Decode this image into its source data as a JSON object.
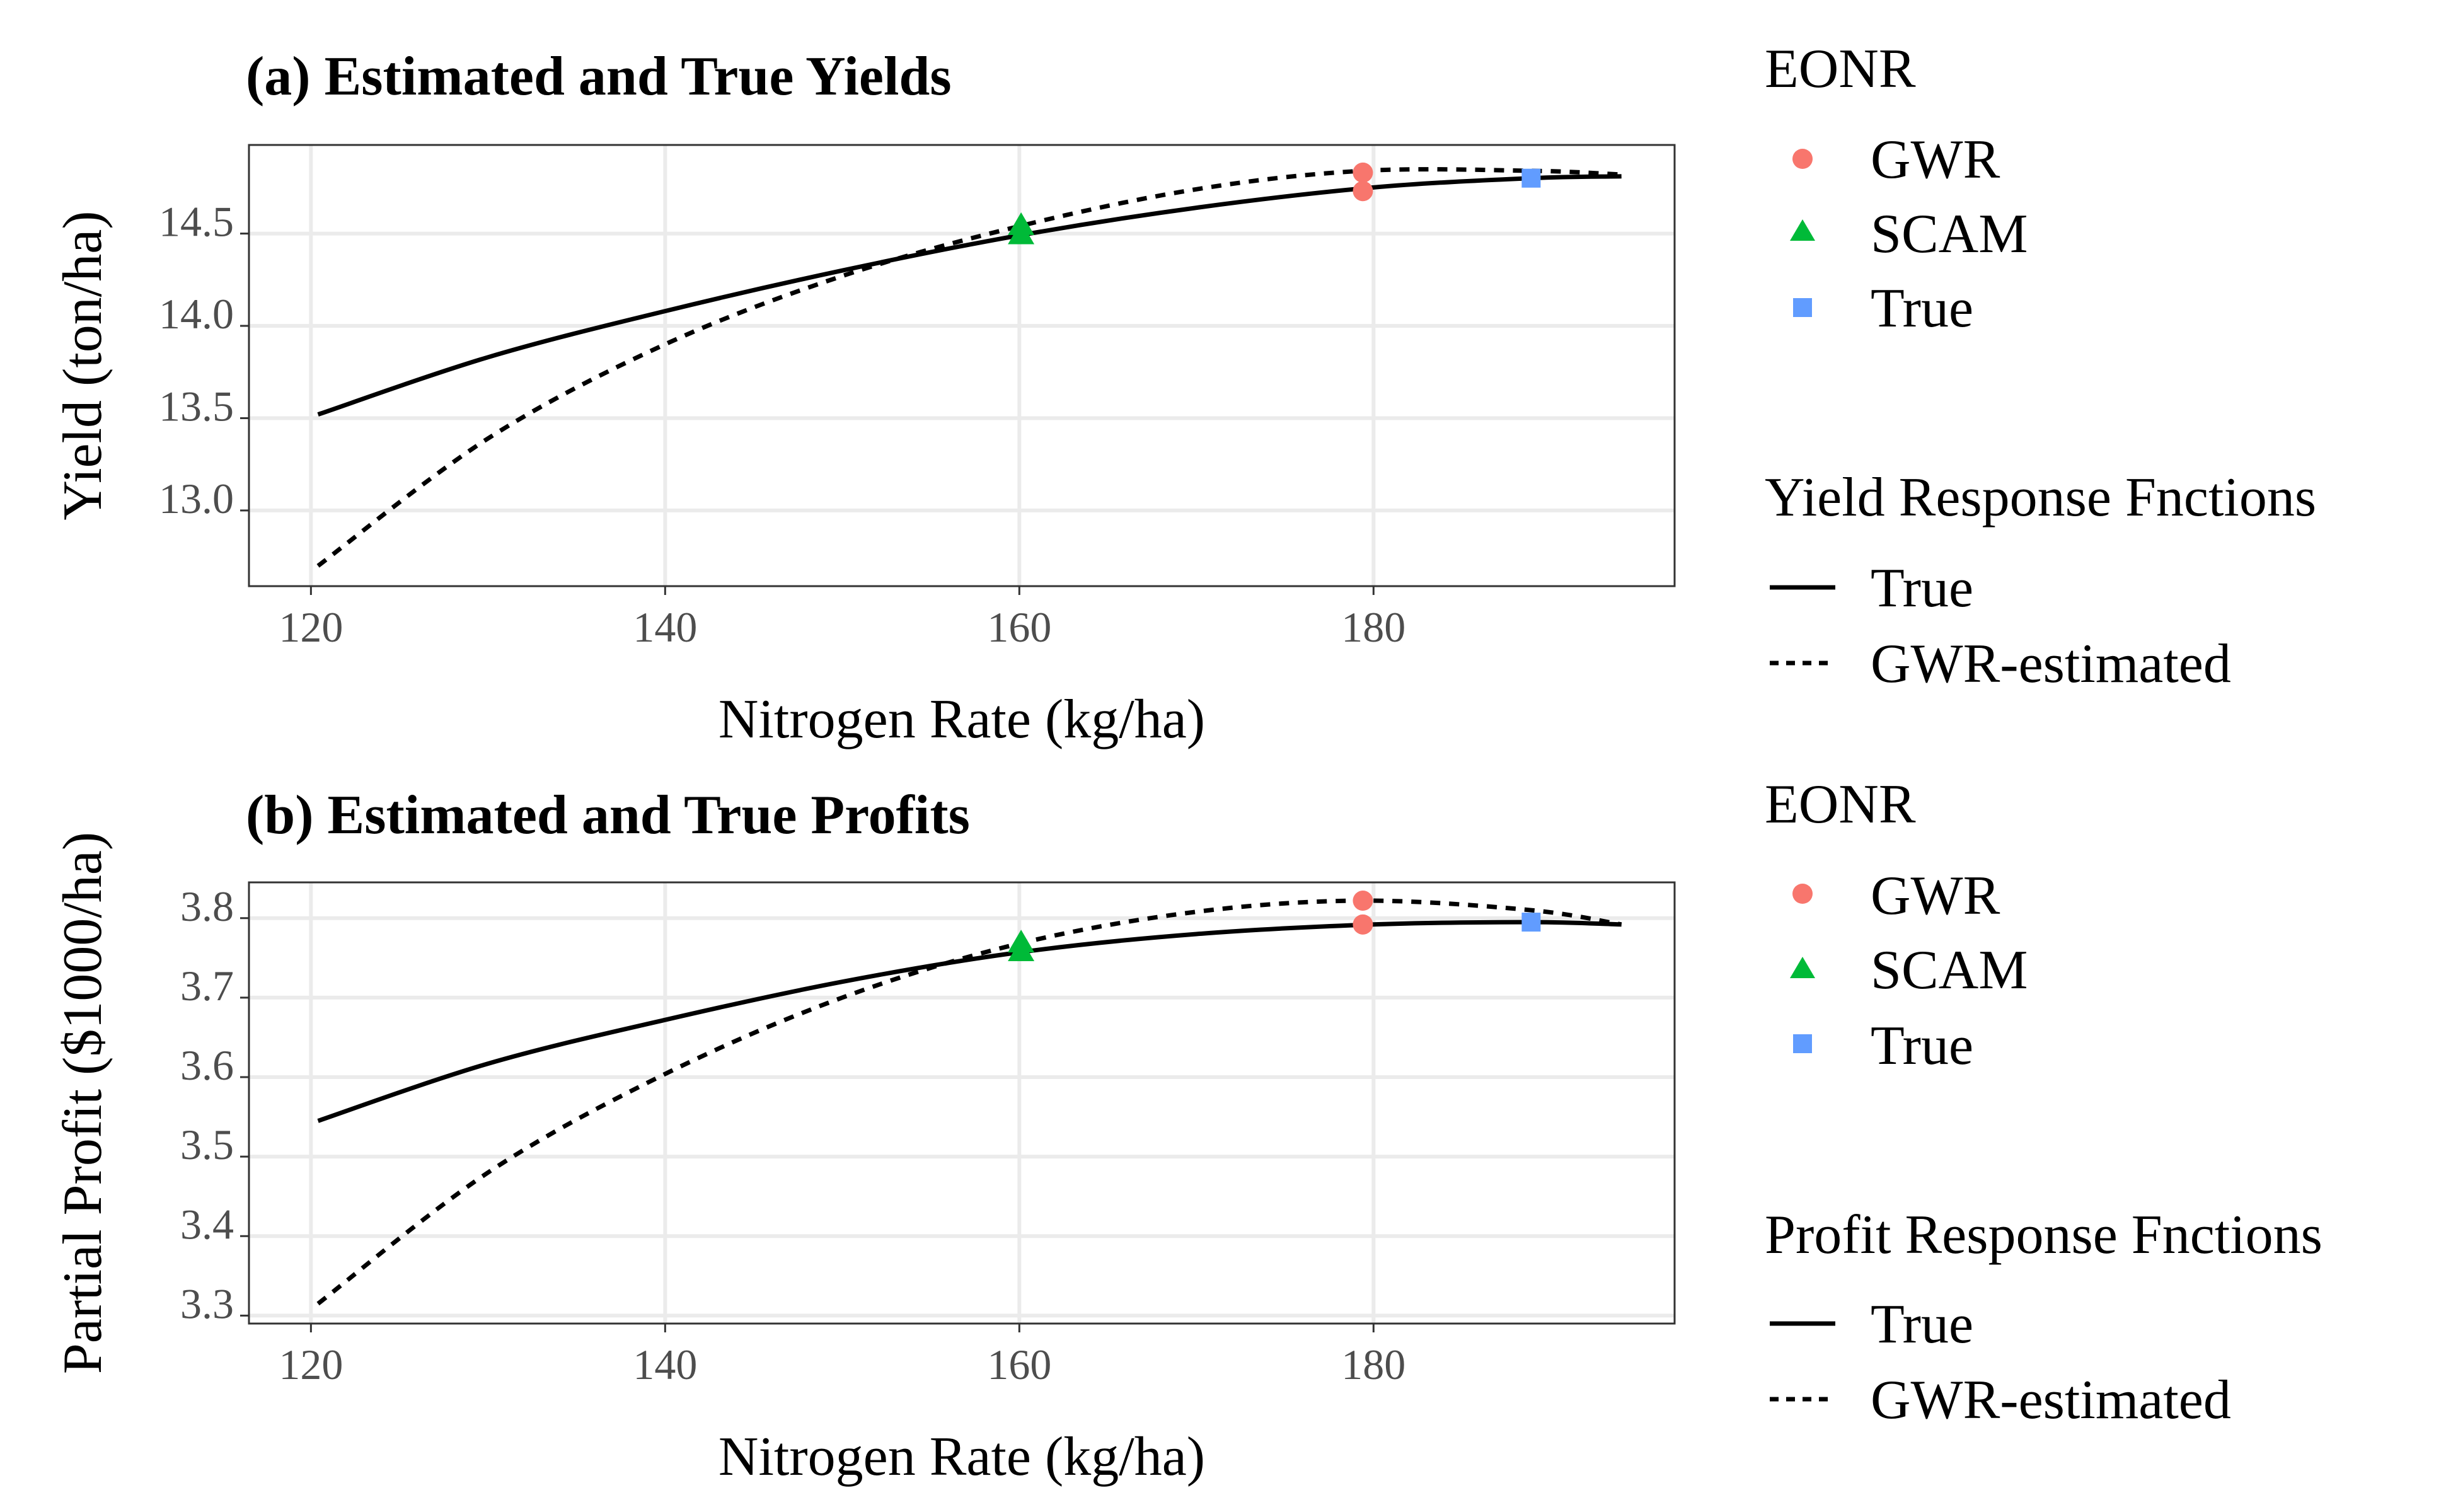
{
  "chart_data": [
    {
      "type": "line",
      "title": "(a) Estimated and True Yields",
      "xlabel": "Nitrogen Rate (kg/ha)",
      "ylabel": "Yield (ton/ha)",
      "xlim": [
        116.5,
        197
      ],
      "ylim": [
        12.59,
        14.98
      ],
      "xticks": [
        120,
        140,
        160,
        180
      ],
      "xtick_labels": [
        "120",
        "140",
        "160",
        "180"
      ],
      "yticks": [
        13.0,
        13.5,
        14.0,
        14.5
      ],
      "ytick_labels": [
        "13.0",
        "13.5",
        "14.0",
        "14.5"
      ],
      "grid": true,
      "series": [
        {
          "name": "True",
          "style": "solid",
          "x": [
            120.4,
            130,
            140,
            150,
            160,
            170,
            180,
            188.9,
            194
          ],
          "y": [
            13.52,
            13.83,
            14.08,
            14.3,
            14.49,
            14.64,
            14.75,
            14.8,
            14.81
          ]
        },
        {
          "name": "GWR-estimated",
          "style": "dashed",
          "x": [
            120.4,
            130,
            140,
            150,
            160,
            170,
            179.4,
            188.9,
            194
          ],
          "y": [
            12.7,
            13.39,
            13.9,
            14.27,
            14.54,
            14.74,
            14.84,
            14.84,
            14.82
          ]
        }
      ],
      "points": [
        {
          "group": "GWR",
          "x": 179.4,
          "y": 14.83
        },
        {
          "group": "GWR",
          "x": 179.4,
          "y": 14.73
        },
        {
          "group": "SCAM",
          "x": 160.1,
          "y": 14.54
        },
        {
          "group": "SCAM",
          "x": 160.1,
          "y": 14.49
        },
        {
          "group": "True",
          "x": 188.9,
          "y": 14.8
        }
      ]
    },
    {
      "type": "line",
      "title": "(b) Estimated and True Profits",
      "xlabel": "Nitrogen Rate (kg/ha)",
      "ylabel": "Partial Profit ($1000/ha)",
      "xlim": [
        116.5,
        197
      ],
      "ylim": [
        3.29,
        3.845
      ],
      "xticks": [
        120,
        140,
        160,
        180
      ],
      "xtick_labels": [
        "120",
        "140",
        "160",
        "180"
      ],
      "yticks": [
        3.3,
        3.4,
        3.5,
        3.6,
        3.7,
        3.8
      ],
      "ytick_labels": [
        "3.3",
        "3.4",
        "3.5",
        "3.6",
        "3.7",
        "3.8"
      ],
      "grid": true,
      "series": [
        {
          "name": "True",
          "style": "solid",
          "x": [
            120.4,
            130,
            140,
            150,
            160,
            170,
            180,
            188.9,
            194
          ],
          "y": [
            3.545,
            3.617,
            3.672,
            3.72,
            3.757,
            3.78,
            3.792,
            3.795,
            3.792
          ]
        },
        {
          "name": "GWR-estimated",
          "style": "dashed",
          "x": [
            120.4,
            130,
            140,
            150,
            160,
            170,
            179.4,
            188.9,
            194
          ],
          "y": [
            3.315,
            3.48,
            3.604,
            3.7,
            3.768,
            3.808,
            3.822,
            3.81,
            3.792
          ]
        }
      ],
      "points": [
        {
          "group": "GWR",
          "x": 179.4,
          "y": 3.822
        },
        {
          "group": "GWR",
          "x": 179.4,
          "y": 3.792
        },
        {
          "group": "SCAM",
          "x": 160.1,
          "y": 3.768
        },
        {
          "group": "SCAM",
          "x": 160.1,
          "y": 3.757
        },
        {
          "group": "True",
          "x": 188.9,
          "y": 3.795
        }
      ]
    }
  ],
  "colors": {
    "GWR": "#F8766D",
    "SCAM": "#00BA38",
    "True": "#619CFF",
    "line": "#000000",
    "grid": "#ebebeb",
    "panel_border": "#333333"
  },
  "legends": [
    {
      "title": "EONR",
      "items": [
        {
          "label": "GWR",
          "shape": "circle"
        },
        {
          "label": "SCAM",
          "shape": "triangle"
        },
        {
          "label": "True",
          "shape": "square"
        }
      ]
    },
    {
      "title": "Yield Response Fnctions",
      "items": [
        {
          "label": "True",
          "style": "solid"
        },
        {
          "label": "GWR-estimated",
          "style": "dashed"
        }
      ]
    },
    {
      "title": "EONR",
      "items": [
        {
          "label": "GWR",
          "shape": "circle"
        },
        {
          "label": "SCAM",
          "shape": "triangle"
        },
        {
          "label": "True",
          "shape": "square"
        }
      ]
    },
    {
      "title": "Profit Response Fnctions",
      "items": [
        {
          "label": "True",
          "style": "solid"
        },
        {
          "label": "GWR-estimated",
          "style": "dashed"
        }
      ]
    }
  ]
}
